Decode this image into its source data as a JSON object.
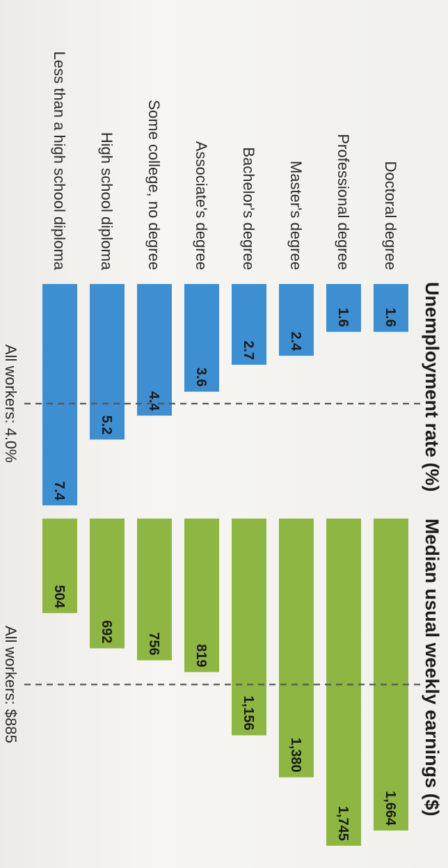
{
  "chart_data": [
    {
      "type": "bar",
      "orientation": "horizontal",
      "title": "Unemployment rate (%)",
      "categories": [
        "Doctoral degree",
        "Professional degree",
        "Master's degree",
        "Bachelor's degree",
        "Associate's degree",
        "Some college, no degree",
        "High school diploma",
        "Less than a high school diploma"
      ],
      "values": [
        1.6,
        1.6,
        2.4,
        2.7,
        3.6,
        4.4,
        5.2,
        7.4
      ],
      "value_labels": [
        "1.6",
        "1.6",
        "2.4",
        "2.7",
        "3.6",
        "4.4",
        "5.2",
        "7.4"
      ],
      "xlim": [
        0,
        7.4
      ],
      "reference_line": {
        "value": 4.0,
        "label": "All workers: 4.0%"
      },
      "color": "#3d8fd1",
      "grid": false
    },
    {
      "type": "bar",
      "orientation": "horizontal",
      "title": "Median usual weekly earnings ($)",
      "categories": [
        "Doctoral degree",
        "Professional degree",
        "Master's degree",
        "Bachelor's degree",
        "Associate's degree",
        "Some college, no degree",
        "High school diploma",
        "Less than a high school diploma"
      ],
      "values": [
        1664,
        1745,
        1380,
        1156,
        819,
        756,
        692,
        504
      ],
      "value_labels": [
        "1,664",
        "1,745",
        "1,380",
        "1,156",
        "819",
        "756",
        "692",
        "504"
      ],
      "xlim": [
        0,
        1745
      ],
      "reference_line": {
        "value": 885,
        "label": "All workers: $885"
      },
      "color": "#8db643",
      "grid": false
    }
  ]
}
